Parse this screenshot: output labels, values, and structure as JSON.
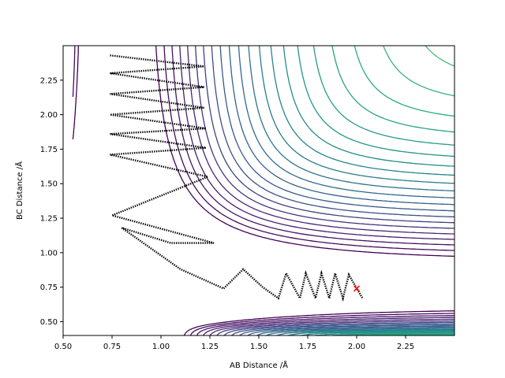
{
  "chart_data": {
    "type": "contour",
    "xlabel": "AB Distance /Å",
    "ylabel": "BC Distance /Å",
    "xlim": [
      0.5,
      2.5
    ],
    "ylim": [
      0.4,
      2.5
    ],
    "xticks": [
      "0.50",
      "0.75",
      "1.00",
      "1.25",
      "1.50",
      "1.75",
      "2.00",
      "2.25"
    ],
    "yticks": [
      "0.50",
      "0.75",
      "1.00",
      "1.25",
      "1.50",
      "1.75",
      "2.00",
      "2.25"
    ],
    "colormap": "viridis",
    "contour_levels": 30,
    "trajectory": {
      "color": "#000000",
      "points": [
        [
          0.74,
          2.43
        ],
        [
          1.22,
          2.35
        ],
        [
          0.74,
          2.3
        ],
        [
          1.22,
          2.2
        ],
        [
          0.74,
          2.15
        ],
        [
          1.22,
          2.05
        ],
        [
          0.74,
          2.0
        ],
        [
          1.23,
          1.9
        ],
        [
          0.74,
          1.86
        ],
        [
          1.23,
          1.76
        ],
        [
          0.74,
          1.71
        ],
        [
          1.24,
          1.55
        ],
        [
          0.75,
          1.27
        ],
        [
          1.27,
          1.07
        ],
        [
          1.05,
          1.07
        ],
        [
          0.8,
          1.18
        ],
        [
          1.1,
          0.88
        ],
        [
          1.32,
          0.74
        ],
        [
          1.42,
          0.88
        ],
        [
          1.52,
          0.75
        ],
        [
          1.6,
          0.67
        ],
        [
          1.64,
          0.85
        ],
        [
          1.71,
          0.67
        ],
        [
          1.74,
          0.85
        ],
        [
          1.79,
          0.67
        ],
        [
          1.82,
          0.85
        ],
        [
          1.86,
          0.67
        ],
        [
          1.89,
          0.85
        ],
        [
          1.93,
          0.67
        ],
        [
          1.96,
          0.84
        ],
        [
          2.03,
          0.67
        ]
      ]
    },
    "end_marker": {
      "x": 2.0,
      "y": 0.74,
      "symbol": "x",
      "color": "#ff0000"
    }
  }
}
